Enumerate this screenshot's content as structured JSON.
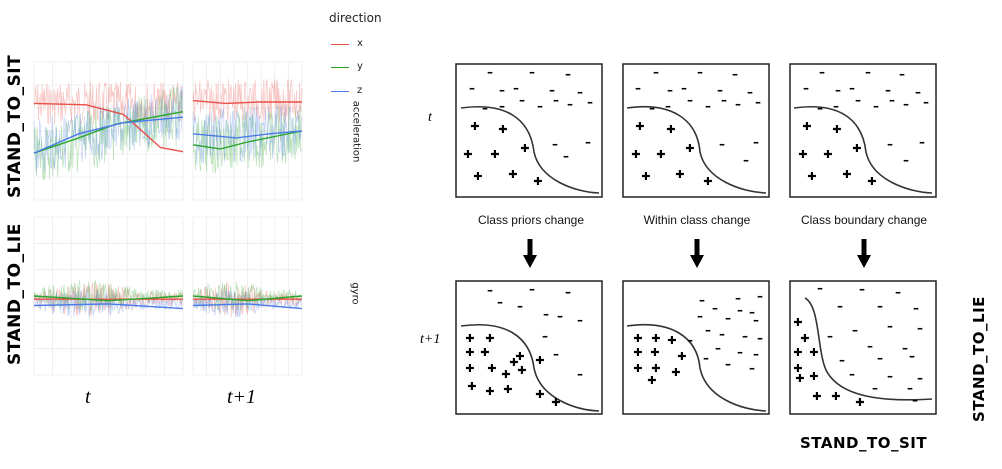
{
  "left_figure": {
    "legend": {
      "title": "direction",
      "items": [
        {
          "label": "x",
          "color": "#e8504a"
        },
        {
          "label": "y",
          "color": "#2aa52a"
        },
        {
          "label": "z",
          "color": "#4a7be8"
        }
      ]
    },
    "row_labels": [
      "STAND_TO_SIT",
      "STAND_TO_LIE"
    ],
    "facet_labels": [
      "acceleration",
      "gyro"
    ],
    "time_labels": [
      "t",
      "t+1"
    ]
  },
  "right_figure": {
    "row_t_labels": [
      "t",
      "t+1"
    ],
    "change_labels": [
      "Class priors change",
      "Within class change",
      "Class boundary change"
    ],
    "minus_sign": "–",
    "plus_sign": "✚",
    "bottom_label": "STAND_TO_SIT",
    "side_label": "STAND_TO_LIE"
  }
}
